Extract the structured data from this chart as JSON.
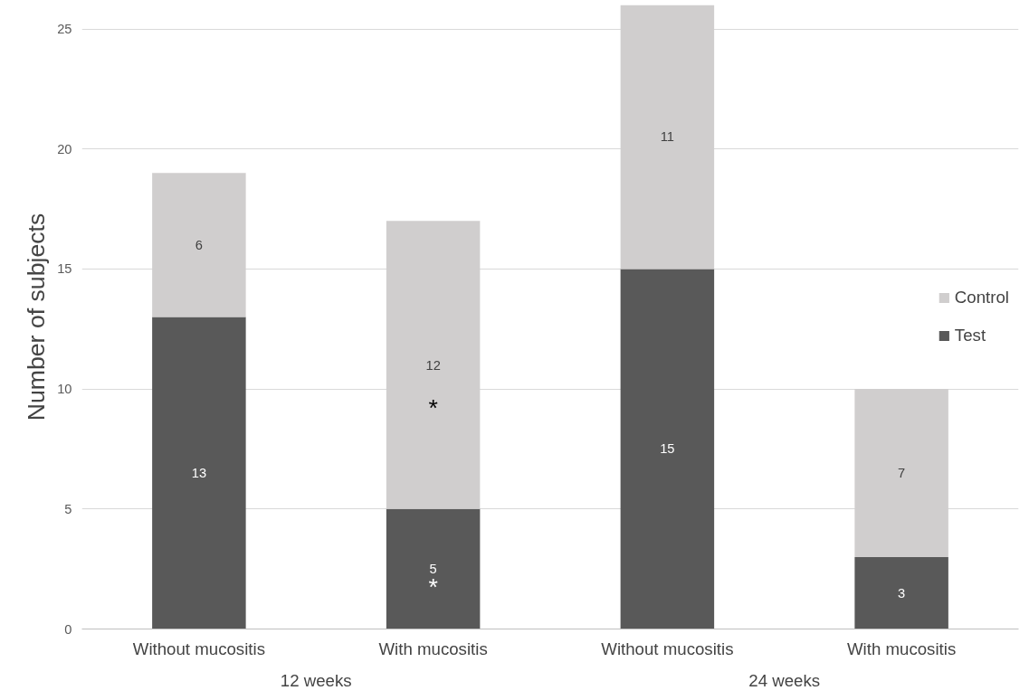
{
  "chart_data": {
    "type": "bar",
    "stacked": true,
    "ylabel": "Number of subjects",
    "categories": [
      "Without mucositis",
      "With mucositis",
      "Without mucositis",
      "With mucositis"
    ],
    "series": [
      {
        "name": "Test",
        "color": "#595959",
        "values": [
          13,
          5,
          15,
          3
        ]
      },
      {
        "name": "Control",
        "color": "#d0cece",
        "values": [
          6,
          12,
          11,
          7
        ]
      }
    ],
    "ylim": [
      0,
      26
    ],
    "yticks": [
      0,
      5,
      10,
      15,
      20,
      25
    ],
    "grid": "y",
    "legend": "right",
    "data_labels": true,
    "annotations": [
      "12 weeks",
      "24 weeks",
      "*",
      "*"
    ]
  }
}
